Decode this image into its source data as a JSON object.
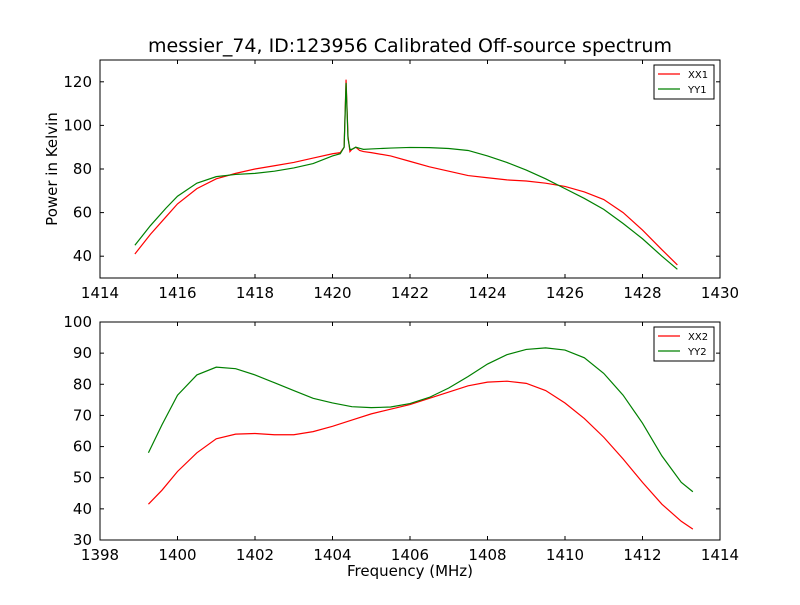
{
  "page": {
    "title": "messier_74, ID:123956 Calibrated Off-source spectrum"
  },
  "chart_data": [
    {
      "type": "line",
      "title": "messier_74, ID:123956 Calibrated Off-source spectrum",
      "xlabel": "",
      "ylabel": "Power in Kelvin",
      "xlim": [
        1414,
        1430
      ],
      "ylim": [
        30,
        130
      ],
      "xticks": [
        "1414",
        "1416",
        "1418",
        "1420",
        "1422",
        "1424",
        "1426",
        "1428",
        "1430"
      ],
      "yticks": [
        "40",
        "60",
        "80",
        "100",
        "120"
      ],
      "xtick_values": [
        1414,
        1416,
        1418,
        1420,
        1422,
        1424,
        1426,
        1428,
        1430
      ],
      "ytick_values": [
        40,
        60,
        80,
        100,
        120
      ],
      "grid": false,
      "legend": "top-right",
      "series": [
        {
          "name": "XX1",
          "color": "#ff0000",
          "x": [
            1414.9,
            1415.3,
            1415.7,
            1416.0,
            1416.5,
            1417.0,
            1417.5,
            1418.0,
            1418.5,
            1419.0,
            1419.5,
            1420.0,
            1420.2,
            1420.3,
            1420.35,
            1420.4,
            1420.45,
            1420.5,
            1420.6,
            1420.7,
            1420.8,
            1421.0,
            1421.5,
            1422.0,
            1422.5,
            1423.0,
            1423.5,
            1424.0,
            1424.5,
            1425.0,
            1425.5,
            1426.0,
            1426.5,
            1427.0,
            1427.5,
            1428.0,
            1428.5,
            1428.9
          ],
          "values": [
            41,
            50,
            58,
            64,
            71,
            75.5,
            78,
            80,
            81.5,
            83,
            85,
            87,
            87.5,
            90,
            121,
            95,
            88,
            89,
            90,
            88.5,
            88,
            87.5,
            86,
            83.5,
            81,
            79,
            77,
            76,
            75,
            74.5,
            73.5,
            72,
            69.5,
            66,
            60,
            52,
            43,
            36
          ]
        },
        {
          "name": "YY1",
          "color": "#008000",
          "x": [
            1414.9,
            1415.3,
            1415.7,
            1416.0,
            1416.5,
            1417.0,
            1417.5,
            1418.0,
            1418.5,
            1419.0,
            1419.5,
            1420.0,
            1420.2,
            1420.3,
            1420.35,
            1420.4,
            1420.45,
            1420.5,
            1420.6,
            1420.7,
            1420.8,
            1421.0,
            1421.5,
            1422.0,
            1422.5,
            1423.0,
            1423.5,
            1424.0,
            1424.5,
            1425.0,
            1425.5,
            1426.0,
            1426.5,
            1427.0,
            1427.5,
            1428.0,
            1428.5,
            1428.9
          ],
          "values": [
            45,
            54,
            62,
            67.5,
            73.5,
            76.5,
            77.5,
            78,
            79,
            80.5,
            82.5,
            86,
            87,
            90,
            119.5,
            94,
            89,
            89,
            90,
            89.5,
            89,
            89.2,
            89.6,
            89.9,
            89.8,
            89.4,
            88.5,
            86,
            83,
            79.5,
            75.5,
            71,
            66.5,
            61.5,
            55,
            48,
            40,
            34
          ]
        }
      ]
    },
    {
      "type": "line",
      "title": "",
      "xlabel": "Frequency (MHz)",
      "ylabel": "",
      "xlim": [
        1398,
        1414
      ],
      "ylim": [
        30,
        100
      ],
      "xticks": [
        "1398",
        "1400",
        "1402",
        "1404",
        "1406",
        "1408",
        "1410",
        "1412",
        "1414"
      ],
      "yticks": [
        "30",
        "40",
        "50",
        "60",
        "70",
        "80",
        "90",
        "100"
      ],
      "xtick_values": [
        1398,
        1400,
        1402,
        1404,
        1406,
        1408,
        1410,
        1412,
        1414
      ],
      "ytick_values": [
        30,
        40,
        50,
        60,
        70,
        80,
        90,
        100
      ],
      "grid": false,
      "legend": "top-right",
      "series": [
        {
          "name": "XX2",
          "color": "#ff0000",
          "x": [
            1399.25,
            1399.6,
            1400.0,
            1400.5,
            1401.0,
            1401.5,
            1402.0,
            1402.5,
            1403.0,
            1403.5,
            1404.0,
            1404.5,
            1405.0,
            1405.5,
            1406.0,
            1406.5,
            1407.0,
            1407.5,
            1408.0,
            1408.5,
            1409.0,
            1409.5,
            1410.0,
            1410.5,
            1411.0,
            1411.5,
            1412.0,
            1412.5,
            1413.0,
            1413.3
          ],
          "values": [
            41.5,
            46,
            52,
            58,
            62.5,
            64,
            64.2,
            63.8,
            63.8,
            64.8,
            66.5,
            68.5,
            70.5,
            72,
            73.5,
            75.5,
            77.5,
            79.5,
            80.7,
            81,
            80.3,
            78,
            74,
            69,
            63,
            56,
            48.5,
            41.5,
            36,
            33.5
          ]
        },
        {
          "name": "YY2",
          "color": "#008000",
          "x": [
            1399.25,
            1399.6,
            1400.0,
            1400.5,
            1401.0,
            1401.5,
            1402.0,
            1402.5,
            1403.0,
            1403.5,
            1404.0,
            1404.5,
            1405.0,
            1405.5,
            1406.0,
            1406.5,
            1407.0,
            1407.5,
            1408.0,
            1408.5,
            1409.0,
            1409.5,
            1410.0,
            1410.5,
            1411.0,
            1411.5,
            1412.0,
            1412.5,
            1413.0,
            1413.3
          ],
          "values": [
            58,
            67,
            76.5,
            83,
            85.5,
            85,
            83,
            80.5,
            78,
            75.5,
            74,
            72.8,
            72.5,
            72.7,
            73.8,
            75.8,
            78.8,
            82.5,
            86.5,
            89.5,
            91.2,
            91.7,
            91,
            88.5,
            83.5,
            76.5,
            67.5,
            57,
            48.5,
            45.5
          ]
        }
      ]
    }
  ]
}
